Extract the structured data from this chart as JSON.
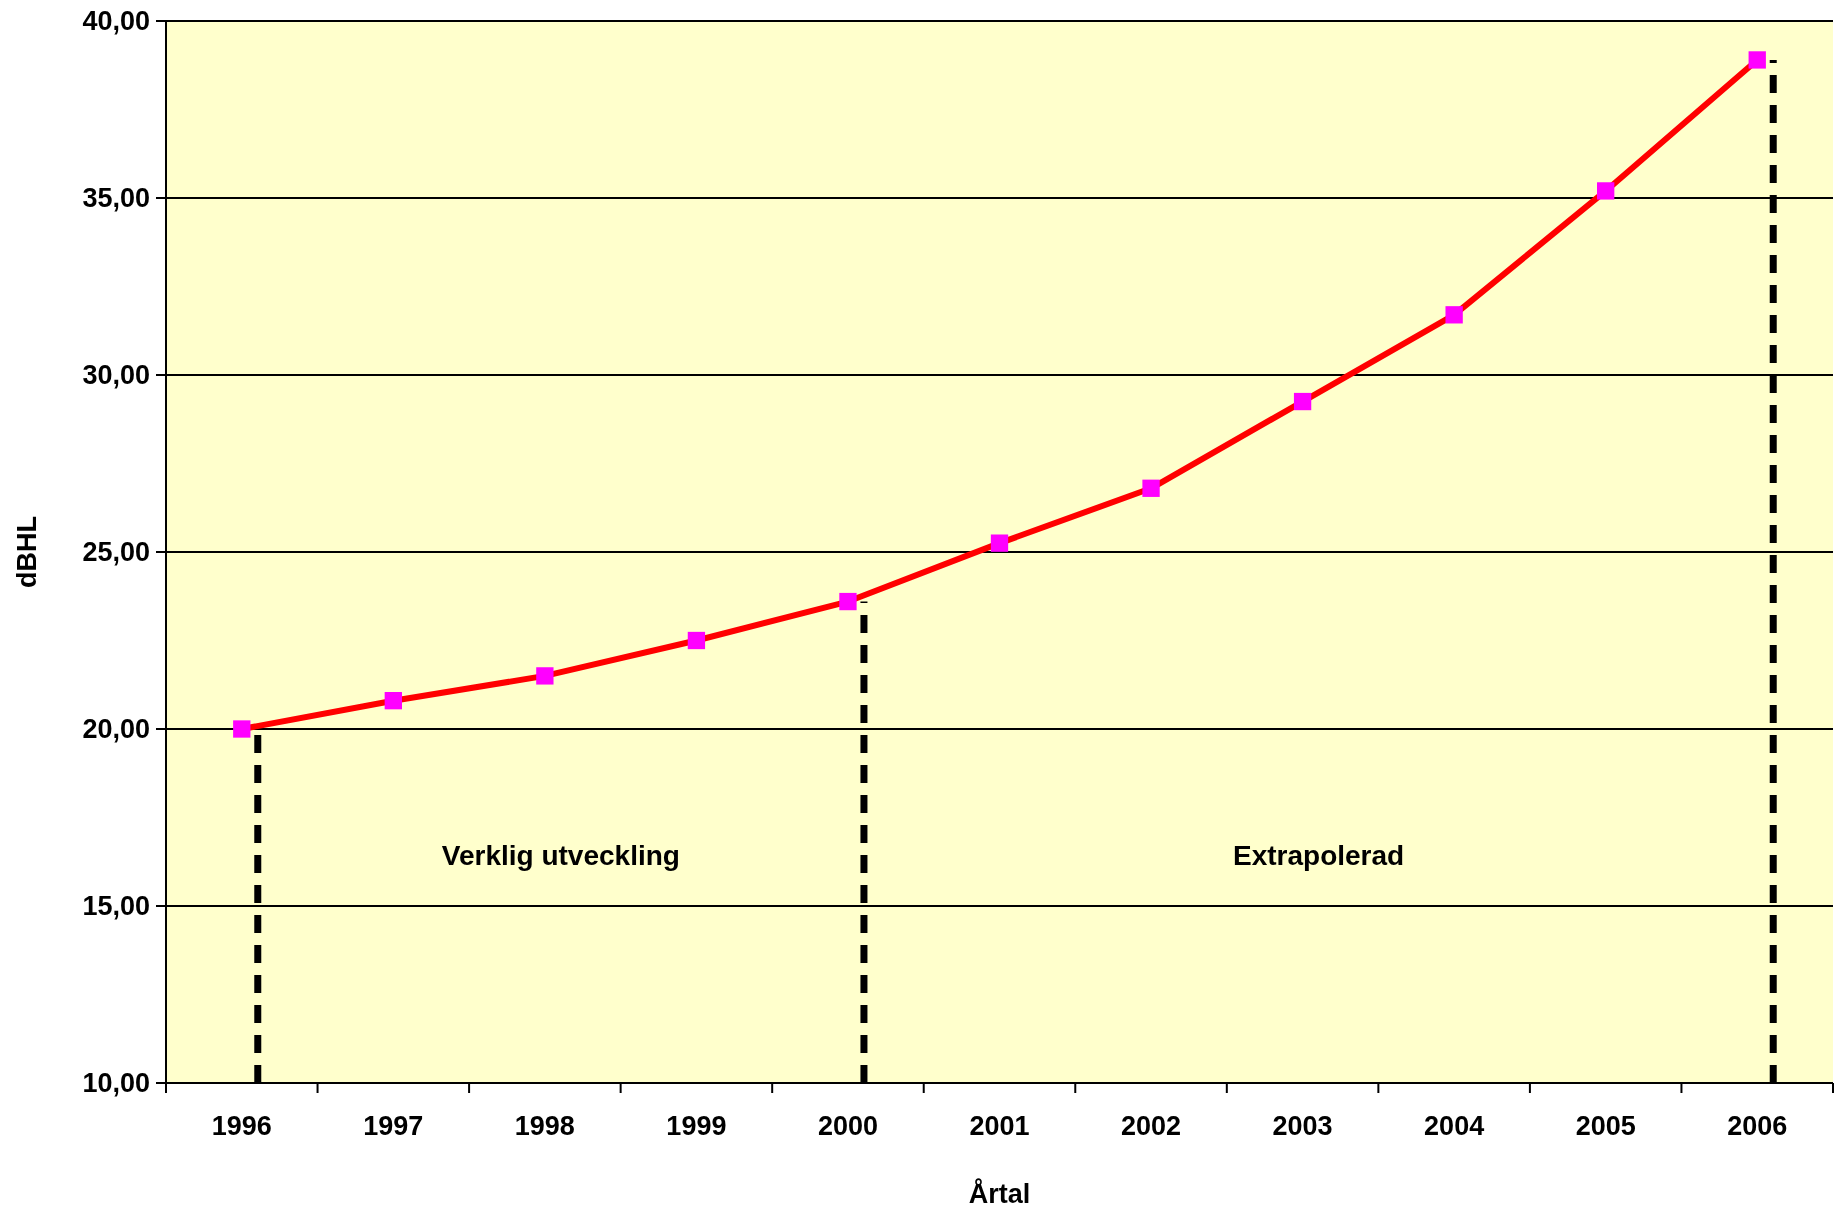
{
  "chart_data": {
    "type": "line",
    "xlabel": "Årtal",
    "ylabel": "dBHL",
    "categories": [
      "1996",
      "1997",
      "1998",
      "1999",
      "2000",
      "2001",
      "2002",
      "2003",
      "2004",
      "2005",
      "2006"
    ],
    "series": [
      {
        "color": "#ff0000",
        "colors": [
          "#ff00ff",
          "#ff00ff",
          "#ff00ff",
          "#ff00ff",
          "#ff00ff",
          "#ff00ff",
          "#ff00ff",
          "#ff00ff",
          "#ff00ff",
          "#ff00ff",
          "#ff00ff"
        ],
        "values": [
          20.0,
          20.8,
          21.5,
          22.5,
          23.6,
          25.25,
          26.8,
          29.25,
          31.7,
          35.2,
          38.9
        ]
      }
    ],
    "marker": "square",
    "ylim": [
      10,
      40
    ],
    "yticks": [
      {
        "value": 10,
        "label": "10,00"
      },
      {
        "value": 15,
        "label": "15,00"
      },
      {
        "value": 20,
        "label": "20,00"
      },
      {
        "value": 25,
        "label": "25,00"
      },
      {
        "value": 30,
        "label": "30,00"
      },
      {
        "value": 35,
        "label": "35,00"
      },
      {
        "value": 40,
        "label": "40,00"
      }
    ],
    "grid": "y",
    "ref_lines": [
      {
        "axis": "x",
        "value": "1996",
        "color": "#000000",
        "line_style": "dashed"
      },
      {
        "axis": "x",
        "value": "2000",
        "color": "#000000",
        "line_style": "dashed"
      },
      {
        "axis": "x",
        "value": "2006",
        "color": "#000000",
        "line_style": "dashed"
      }
    ],
    "annotations": [
      "Verklig utveckling",
      "Extrapolerad"
    ]
  }
}
